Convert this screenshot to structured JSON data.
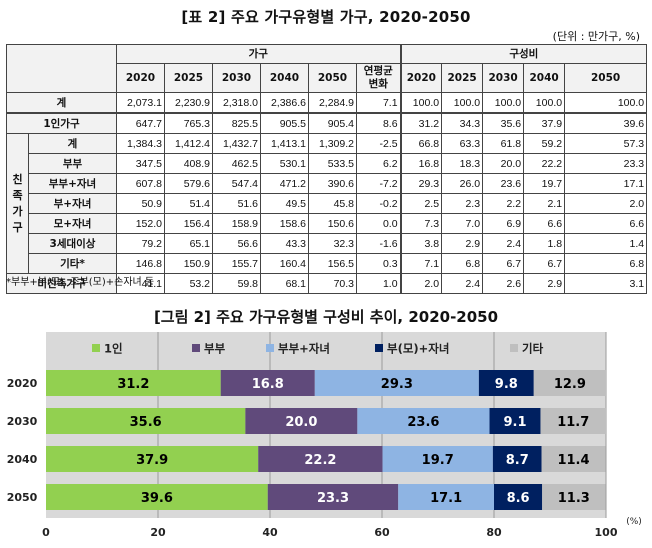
{
  "table": {
    "title": "[표 2] 주요 가구유형별 가구, 2020-2050",
    "unit": "(단위 : 만가구, %)",
    "group_households": "가구",
    "group_composition": "구성비",
    "years": [
      "2020",
      "2025",
      "2030",
      "2040",
      "2050"
    ],
    "change_label_l1": "연평균",
    "change_label_l2": "변화",
    "family_group_label": [
      "친",
      "족",
      "가",
      "구"
    ],
    "rows": [
      {
        "label": "계",
        "values": [
          "2,073.1",
          "2,230.9",
          "2,318.0",
          "2,386.6",
          "2,284.9"
        ],
        "change": "7.1",
        "comp": [
          "100.0",
          "100.0",
          "100.0",
          "100.0",
          "100.0"
        ]
      },
      {
        "label": "1인가구",
        "values": [
          "647.7",
          "765.3",
          "825.5",
          "905.5",
          "905.4"
        ],
        "change": "8.6",
        "comp": [
          "31.2",
          "34.3",
          "35.6",
          "37.9",
          "39.6"
        ]
      },
      {
        "label": "계",
        "values": [
          "1,384.3",
          "1,412.4",
          "1,432.7",
          "1,413.1",
          "1,309.2"
        ],
        "change": "-2.5",
        "comp": [
          "66.8",
          "63.3",
          "61.8",
          "59.2",
          "57.3"
        ]
      },
      {
        "label": "부부",
        "values": [
          "347.5",
          "408.9",
          "462.5",
          "530.1",
          "533.5"
        ],
        "change": "6.2",
        "comp": [
          "16.8",
          "18.3",
          "20.0",
          "22.2",
          "23.3"
        ]
      },
      {
        "label": "부부+자녀",
        "values": [
          "607.8",
          "579.6",
          "547.4",
          "471.2",
          "390.6"
        ],
        "change": "-7.2",
        "comp": [
          "29.3",
          "26.0",
          "23.6",
          "19.7",
          "17.1"
        ]
      },
      {
        "label": "부+자녀",
        "values": [
          "50.9",
          "51.4",
          "51.6",
          "49.5",
          "45.8"
        ],
        "change": "-0.2",
        "comp": [
          "2.5",
          "2.3",
          "2.2",
          "2.1",
          "2.0"
        ]
      },
      {
        "label": "모+자녀",
        "values": [
          "152.0",
          "156.4",
          "158.9",
          "158.6",
          "150.6"
        ],
        "change": "0.0",
        "comp": [
          "7.3",
          "7.0",
          "6.9",
          "6.6",
          "6.6"
        ]
      },
      {
        "label": "3세대이상",
        "values": [
          "79.2",
          "65.1",
          "56.6",
          "43.3",
          "32.3"
        ],
        "change": "-1.6",
        "comp": [
          "3.8",
          "2.9",
          "2.4",
          "1.8",
          "1.4"
        ]
      },
      {
        "label": "기타*",
        "values": [
          "146.8",
          "150.9",
          "155.7",
          "160.4",
          "156.5"
        ],
        "change": "0.3",
        "comp": [
          "7.1",
          "6.8",
          "6.7",
          "6.7",
          "6.8"
        ]
      },
      {
        "label": "비친족가구",
        "values": [
          "41.1",
          "53.2",
          "59.8",
          "68.1",
          "70.3"
        ],
        "change": "1.0",
        "comp": [
          "2.0",
          "2.4",
          "2.6",
          "2.9",
          "3.1"
        ]
      }
    ],
    "footnote": "*부부+부(모), 조부(모)+손자녀 등"
  },
  "figure": {
    "title": "[그림 2] 주요 가구유형별 구성비 추이, 2020-2050"
  },
  "chart_data": {
    "type": "bar",
    "orientation": "horizontal",
    "stacked": true,
    "categories": [
      "2020",
      "2030",
      "2040",
      "2050"
    ],
    "series": [
      {
        "name": "1인",
        "color": "#92d050",
        "values": [
          31.2,
          35.6,
          37.9,
          39.6
        ]
      },
      {
        "name": "부부",
        "color": "#604a7b",
        "values": [
          16.8,
          20.0,
          22.2,
          23.3
        ]
      },
      {
        "name": "부부+자녀",
        "color": "#8eb4e3",
        "values": [
          29.3,
          23.6,
          19.7,
          17.1
        ]
      },
      {
        "name": "부(모)+자녀",
        "color": "#002060",
        "values": [
          9.8,
          9.1,
          8.7,
          8.6
        ]
      },
      {
        "name": "기타",
        "color": "#bfbfbf",
        "values": [
          12.9,
          11.7,
          11.4,
          11.3
        ]
      }
    ],
    "label_colors": [
      "#000000",
      "#ffffff",
      "#000000",
      "#ffffff",
      "#000000"
    ],
    "xlim": [
      0,
      100
    ],
    "xticks": [
      "0",
      "20",
      "40",
      "60",
      "80",
      "100"
    ],
    "xunit": "(%)",
    "legend": "top",
    "grid": true,
    "background": "#d9d9d9"
  }
}
